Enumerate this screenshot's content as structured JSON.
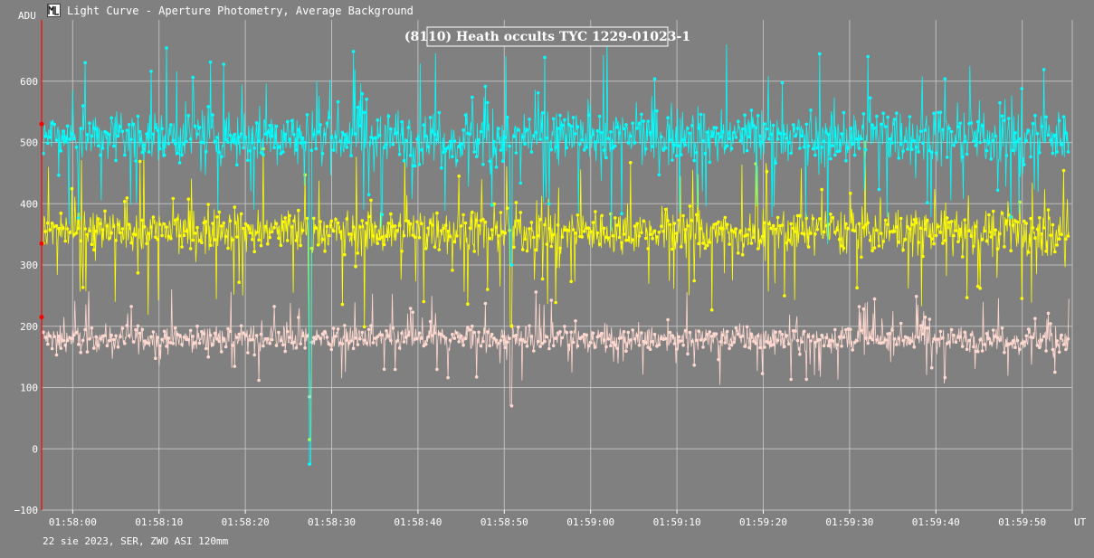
{
  "window": {
    "title": "Light Curve - Aperture Photometry, Average Background",
    "icon": "light-curve-icon"
  },
  "footer": {
    "text": "22 sie 2023, SER, ZWO ASI 120mm"
  },
  "chart_data": {
    "type": "line",
    "title": "(8110) Heath occults TYC 1229-01023-1",
    "xlabel": "UT",
    "ylabel": "ADU",
    "x_ticks": [
      "01:58:00",
      "01:58:10",
      "01:58:20",
      "01:58:30",
      "01:58:40",
      "01:58:50",
      "01:59:00",
      "01:59:10",
      "01:59:20",
      "01:59:30",
      "01:59:40",
      "01:59:50"
    ],
    "x_tick_seconds": [
      0,
      10,
      20,
      30,
      40,
      50,
      60,
      70,
      80,
      90,
      100,
      110
    ],
    "xlim": [
      -3.6,
      115.8
    ],
    "y_ticks": [
      -100,
      0,
      100,
      200,
      300,
      400,
      500,
      600
    ],
    "ylim": [
      -100,
      700
    ],
    "grid": true,
    "marker": "dot",
    "markers_left": [
      {
        "color": "#ff0000",
        "value": 530
      },
      {
        "color": "#ff0000",
        "value": 335
      },
      {
        "color": "#ff0000",
        "value": 215
      }
    ],
    "event_dips": [
      {
        "time": 27.5,
        "values": {
          "cyan": -25,
          "yellow": 15,
          "pink": 85
        }
      },
      {
        "time": 50.8,
        "values": {
          "cyan": 300,
          "yellow": 200,
          "pink": 70
        }
      }
    ],
    "series": [
      {
        "color": "#00ffff",
        "mean": 510,
        "spread": 50,
        "amplitude": 120
      },
      {
        "color": "#ffff00",
        "mean": 355,
        "spread": 40,
        "amplitude": 110
      },
      {
        "color": "#ffd8d0",
        "mean": 180,
        "spread": 22,
        "amplitude": 60
      }
    ],
    "colors": {
      "background": "#808080",
      "grid": "#c8c8c8",
      "cursor": "#ff0000",
      "cyan": "#00ffff",
      "yellow": "#ffff00",
      "pink": "#ffd8d0"
    }
  }
}
